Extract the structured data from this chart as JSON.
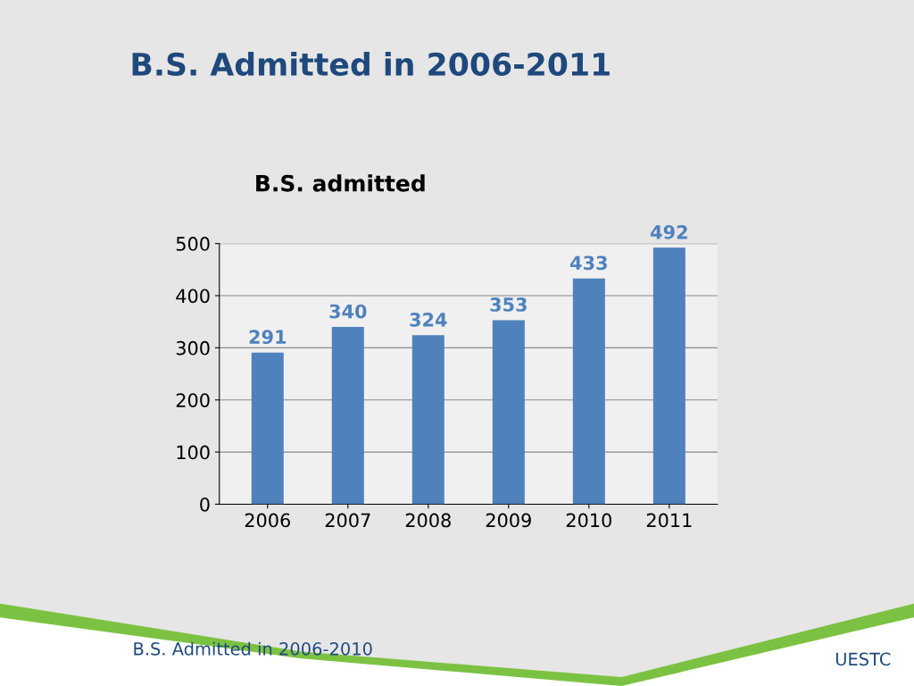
{
  "chart_data": {
    "type": "bar",
    "title": "B.S. Admitted in 2006-2011",
    "subtitle": "B.S. admitted",
    "categories": [
      "2006",
      "2007",
      "2008",
      "2009",
      "2010",
      "2011"
    ],
    "values": [
      291,
      340,
      324,
      353,
      433,
      492
    ],
    "color": "#4f81bd",
    "ylim": [
      0,
      500
    ],
    "yticks": [
      0,
      100,
      200,
      300,
      400,
      500
    ],
    "grid": "y",
    "data_labels": true,
    "annotations": [
      "B.S. Admitted in 2006-2010",
      "UESTC"
    ]
  }
}
